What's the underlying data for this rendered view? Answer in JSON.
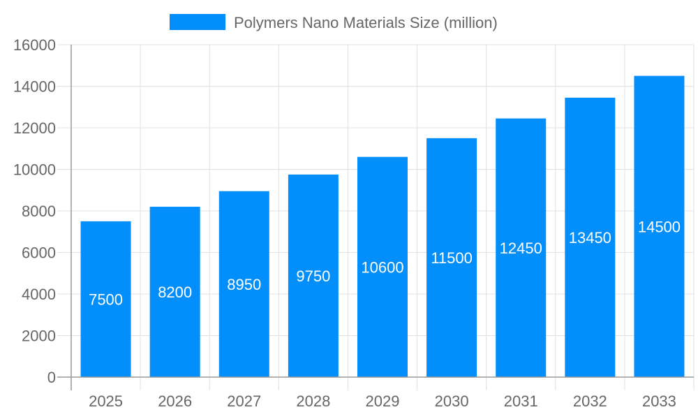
{
  "chart_data": {
    "type": "bar",
    "title": "",
    "xlabel": "",
    "ylabel": "",
    "categories": [
      "2025",
      "2026",
      "2027",
      "2028",
      "2029",
      "2030",
      "2031",
      "2032",
      "2033"
    ],
    "series": [
      {
        "name": "Polymers Nano Materials Size (million)",
        "values": [
          7500,
          8200,
          8950,
          9750,
          10600,
          11500,
          12450,
          13450,
          14500
        ],
        "color": "#038ffb"
      }
    ],
    "ylim": [
      0,
      16000
    ],
    "yticks": [
      0,
      2000,
      4000,
      6000,
      8000,
      10000,
      12000,
      14000,
      16000
    ],
    "grid": true,
    "legend": "top-center",
    "data_labels": "inside-center"
  }
}
